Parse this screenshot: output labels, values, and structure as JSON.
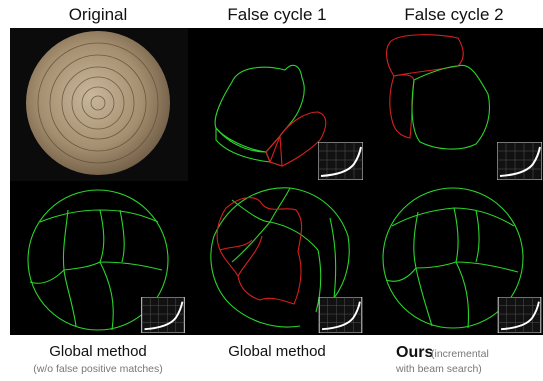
{
  "headers": [
    "Original",
    "False cycle 1",
    "False cycle 2"
  ],
  "captions": [
    {
      "title": "Global method",
      "note": "(w/o false positive matches)"
    },
    {
      "title": "Global method"
    },
    {
      "title": "Ours",
      "note_lines": [
        "(incremental",
        "with beam search)"
      ]
    }
  ]
}
